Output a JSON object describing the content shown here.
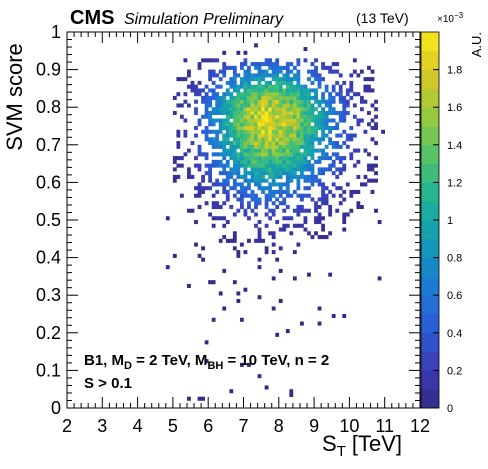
{
  "chart_data": {
    "type": "heatmap",
    "header": {
      "experiment": "CMS",
      "status": "Simulation Preliminary",
      "energy": "(13 TeV)"
    },
    "xlabel_main": "S",
    "xlabel_sub": "T",
    "xlabel_unit": "[TeV]",
    "ylabel": "SVM score",
    "xlim": [
      2,
      12
    ],
    "ylim": [
      0,
      1
    ],
    "x_ticks": [
      "2",
      "3",
      "4",
      "5",
      "6",
      "7",
      "8",
      "9",
      "10",
      "11",
      "12"
    ],
    "y_ticks": [
      "0",
      "0.1",
      "0.2",
      "0.3",
      "0.4",
      "0.5",
      "0.6",
      "0.7",
      "0.8",
      "0.9",
      "1"
    ],
    "colorbar": {
      "label": "A.U.",
      "exponent_base": "×10",
      "exponent_power": "−3",
      "zlim": [
        0,
        0.002
      ],
      "ticks": [
        "0",
        "0.2",
        "0.4",
        "0.6",
        "0.8",
        "1",
        "1.2",
        "1.4",
        "1.6",
        "1.8"
      ],
      "palette": [
        "#352a87",
        "#3a3fb8",
        "#2a5fd6",
        "#1b7ed1",
        "#149bb5",
        "#1fb296",
        "#52c269",
        "#97c93f",
        "#d8c825",
        "#f9e81b"
      ]
    },
    "annotation": {
      "line1_a": "B1, M",
      "line1_a_sub": "D",
      "line1_b": " = 2 TeV, M",
      "line1_b_sub": "BH",
      "line1_c": " = 10 TeV, n = 2",
      "line2": "S > 0.1"
    },
    "distribution": {
      "peak_x": 7.7,
      "peak_y": 0.77,
      "peak_density_e3": 1.9,
      "core_x_range": [
        5.4,
        10.2
      ],
      "core_y_range": [
        0.5,
        0.92
      ],
      "tail_x_range": [
        2,
        12
      ],
      "tail_y_range": [
        0.02,
        0.5
      ]
    },
    "grid": false
  }
}
